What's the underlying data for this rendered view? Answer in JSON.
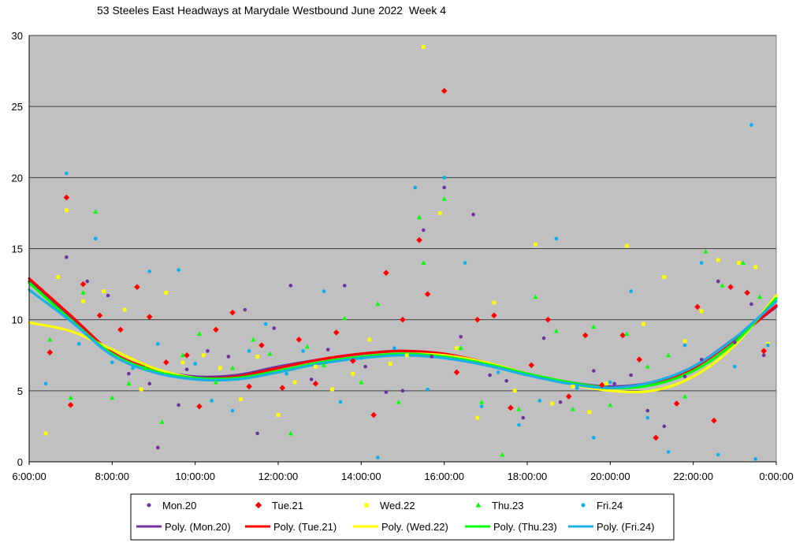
{
  "chart_data": {
    "type": "scatter",
    "title": "53 Steeles East Headways at Marydale Westbound June 2022  Week 4",
    "xlabel": "",
    "ylabel": "",
    "x_unit": "time of day (hours from 6:00:00)",
    "xlim": [
      6,
      24
    ],
    "ylim": [
      0,
      30
    ],
    "x_ticks": [
      "6:00:00",
      "8:00:00",
      "10:00:00",
      "12:00:00",
      "14:00:00",
      "16:00:00",
      "18:00:00",
      "20:00:00",
      "22:00:00",
      "0:00:00"
    ],
    "y_ticks": [
      "0",
      "5",
      "10",
      "15",
      "20",
      "25",
      "30"
    ],
    "grid": "horizontal",
    "plot_background": "#c0c0c0",
    "legend_position": "bottom",
    "series": [
      {
        "name": "Mon.20",
        "marker": "circle",
        "color": "#7030a0",
        "points": [
          [
            6.9,
            14.4
          ],
          [
            7.4,
            12.7
          ],
          [
            7.6,
            15.7
          ],
          [
            7.9,
            11.7
          ],
          [
            8.4,
            6.2
          ],
          [
            8.9,
            5.5
          ],
          [
            9.1,
            1.0
          ],
          [
            9.6,
            4.0
          ],
          [
            9.8,
            6.5
          ],
          [
            10.3,
            7.8
          ],
          [
            10.8,
            7.4
          ],
          [
            11.2,
            10.7
          ],
          [
            11.5,
            2.0
          ],
          [
            11.9,
            9.4
          ],
          [
            12.3,
            12.4
          ],
          [
            12.8,
            5.8
          ],
          [
            13.2,
            7.9
          ],
          [
            13.6,
            12.4
          ],
          [
            14.1,
            6.7
          ],
          [
            14.6,
            4.9
          ],
          [
            15.0,
            5.0
          ],
          [
            15.5,
            16.3
          ],
          [
            15.7,
            7.4
          ],
          [
            16.0,
            19.3
          ],
          [
            16.4,
            8.8
          ],
          [
            16.7,
            17.4
          ],
          [
            17.1,
            6.1
          ],
          [
            17.5,
            5.7
          ],
          [
            17.9,
            3.1
          ],
          [
            18.4,
            8.7
          ],
          [
            18.8,
            4.2
          ],
          [
            19.2,
            5.2
          ],
          [
            19.6,
            6.4
          ],
          [
            20.1,
            5.5
          ],
          [
            20.5,
            6.1
          ],
          [
            20.9,
            3.6
          ],
          [
            21.3,
            2.5
          ],
          [
            21.8,
            6.0
          ],
          [
            22.2,
            7.2
          ],
          [
            22.6,
            12.7
          ],
          [
            23.0,
            8.4
          ],
          [
            23.4,
            11.1
          ],
          [
            23.7,
            7.5
          ]
        ]
      },
      {
        "name": "Tue.21",
        "marker": "diamond",
        "color": "#ff0000",
        "points": [
          [
            6.5,
            7.7
          ],
          [
            6.9,
            18.6
          ],
          [
            7.0,
            4.0
          ],
          [
            7.3,
            12.5
          ],
          [
            7.7,
            10.3
          ],
          [
            8.2,
            9.3
          ],
          [
            8.6,
            12.3
          ],
          [
            8.9,
            10.2
          ],
          [
            9.3,
            7.0
          ],
          [
            9.8,
            7.5
          ],
          [
            10.1,
            3.9
          ],
          [
            10.5,
            9.3
          ],
          [
            10.9,
            10.5
          ],
          [
            11.3,
            5.3
          ],
          [
            11.6,
            8.2
          ],
          [
            12.1,
            5.2
          ],
          [
            12.5,
            8.6
          ],
          [
            12.9,
            5.5
          ],
          [
            13.4,
            9.1
          ],
          [
            13.8,
            7.1
          ],
          [
            14.3,
            3.3
          ],
          [
            14.6,
            13.3
          ],
          [
            15.0,
            10.0
          ],
          [
            15.4,
            15.6
          ],
          [
            15.6,
            11.8
          ],
          [
            16.0,
            26.1
          ],
          [
            16.3,
            6.3
          ],
          [
            16.8,
            10.0
          ],
          [
            17.2,
            10.3
          ],
          [
            17.6,
            3.8
          ],
          [
            18.1,
            6.8
          ],
          [
            18.5,
            10.0
          ],
          [
            19.0,
            4.6
          ],
          [
            19.4,
            8.9
          ],
          [
            19.8,
            5.4
          ],
          [
            20.3,
            8.9
          ],
          [
            20.7,
            7.2
          ],
          [
            21.1,
            1.7
          ],
          [
            21.6,
            4.1
          ],
          [
            22.1,
            10.9
          ],
          [
            22.5,
            2.9
          ],
          [
            22.9,
            12.3
          ],
          [
            23.3,
            11.9
          ],
          [
            23.7,
            7.8
          ]
        ]
      },
      {
        "name": "Wed.22",
        "marker": "square",
        "color": "#ffff00",
        "points": [
          [
            6.4,
            2.0
          ],
          [
            6.7,
            13.0
          ],
          [
            6.9,
            17.7
          ],
          [
            7.3,
            11.3
          ],
          [
            7.8,
            12.0
          ],
          [
            8.3,
            10.7
          ],
          [
            8.7,
            5.1
          ],
          [
            9.3,
            11.9
          ],
          [
            9.7,
            7.0
          ],
          [
            10.2,
            7.5
          ],
          [
            10.6,
            6.6
          ],
          [
            11.1,
            4.4
          ],
          [
            11.5,
            7.4
          ],
          [
            12.0,
            3.3
          ],
          [
            12.4,
            5.6
          ],
          [
            12.9,
            6.7
          ],
          [
            13.3,
            5.1
          ],
          [
            13.8,
            6.2
          ],
          [
            14.2,
            8.6
          ],
          [
            14.7,
            6.9
          ],
          [
            15.1,
            7.5
          ],
          [
            15.5,
            29.2
          ],
          [
            15.9,
            17.5
          ],
          [
            16.3,
            8.0
          ],
          [
            16.8,
            3.1
          ],
          [
            17.2,
            11.2
          ],
          [
            17.7,
            5.0
          ],
          [
            18.2,
            15.3
          ],
          [
            18.6,
            4.1
          ],
          [
            19.1,
            5.3
          ],
          [
            19.5,
            3.5
          ],
          [
            19.9,
            5.5
          ],
          [
            20.4,
            15.2
          ],
          [
            20.8,
            9.7
          ],
          [
            21.3,
            13.0
          ],
          [
            21.8,
            8.5
          ],
          [
            22.2,
            10.6
          ],
          [
            22.6,
            14.2
          ],
          [
            23.1,
            14.0
          ],
          [
            23.5,
            13.7
          ],
          [
            23.8,
            8.3
          ]
        ]
      },
      {
        "name": "Thu.23",
        "marker": "triangle",
        "color": "#00ff00",
        "points": [
          [
            6.5,
            8.6
          ],
          [
            7.0,
            4.5
          ],
          [
            7.3,
            11.9
          ],
          [
            7.6,
            17.6
          ],
          [
            8.0,
            4.5
          ],
          [
            8.4,
            5.5
          ],
          [
            8.8,
            6.6
          ],
          [
            9.2,
            2.8
          ],
          [
            9.7,
            7.5
          ],
          [
            10.1,
            9.0
          ],
          [
            10.5,
            5.6
          ],
          [
            10.9,
            6.6
          ],
          [
            11.4,
            8.6
          ],
          [
            11.8,
            7.6
          ],
          [
            12.3,
            2.0
          ],
          [
            12.7,
            8.1
          ],
          [
            13.1,
            6.8
          ],
          [
            13.6,
            10.1
          ],
          [
            14.0,
            5.6
          ],
          [
            14.4,
            11.1
          ],
          [
            14.9,
            4.2
          ],
          [
            15.4,
            17.2
          ],
          [
            15.5,
            14.0
          ],
          [
            16.0,
            18.5
          ],
          [
            16.4,
            8.0
          ],
          [
            16.9,
            4.2
          ],
          [
            17.4,
            0.5
          ],
          [
            17.8,
            3.7
          ],
          [
            18.2,
            11.6
          ],
          [
            18.7,
            9.2
          ],
          [
            19.1,
            3.7
          ],
          [
            19.6,
            9.5
          ],
          [
            20.0,
            4.0
          ],
          [
            20.4,
            9.0
          ],
          [
            20.9,
            6.7
          ],
          [
            21.4,
            7.5
          ],
          [
            21.8,
            4.6
          ],
          [
            22.3,
            14.8
          ],
          [
            22.7,
            12.4
          ],
          [
            23.2,
            14.0
          ],
          [
            23.6,
            11.6
          ]
        ]
      },
      {
        "name": "Fri.24",
        "marker": "circle",
        "color": "#00b0f0",
        "points": [
          [
            6.4,
            5.5
          ],
          [
            6.9,
            20.3
          ],
          [
            7.2,
            8.3
          ],
          [
            7.6,
            15.7
          ],
          [
            8.0,
            7.0
          ],
          [
            8.5,
            6.6
          ],
          [
            8.9,
            13.4
          ],
          [
            9.1,
            8.3
          ],
          [
            9.6,
            13.5
          ],
          [
            10.0,
            6.9
          ],
          [
            10.4,
            4.3
          ],
          [
            10.9,
            3.6
          ],
          [
            11.3,
            7.8
          ],
          [
            11.7,
            9.7
          ],
          [
            12.2,
            6.2
          ],
          [
            12.6,
            7.8
          ],
          [
            13.1,
            12.0
          ],
          [
            13.5,
            4.2
          ],
          [
            14.0,
            7.3
          ],
          [
            14.4,
            0.3
          ],
          [
            14.8,
            8.0
          ],
          [
            15.3,
            19.3
          ],
          [
            15.6,
            5.1
          ],
          [
            16.0,
            20.0
          ],
          [
            16.5,
            14.0
          ],
          [
            16.9,
            3.9
          ],
          [
            17.3,
            6.3
          ],
          [
            17.8,
            2.6
          ],
          [
            18.3,
            4.3
          ],
          [
            18.7,
            15.7
          ],
          [
            19.2,
            5.2
          ],
          [
            19.6,
            1.7
          ],
          [
            20.0,
            5.6
          ],
          [
            20.5,
            12.0
          ],
          [
            20.9,
            3.1
          ],
          [
            21.4,
            0.7
          ],
          [
            21.8,
            8.2
          ],
          [
            22.2,
            14.0
          ],
          [
            22.6,
            0.5
          ],
          [
            23.0,
            6.7
          ],
          [
            23.4,
            23.7
          ],
          [
            23.5,
            0.2
          ],
          [
            23.8,
            8.2
          ]
        ]
      }
    ],
    "trendlines": [
      {
        "name": "Poly. (Mon.20)",
        "color": "#7030a0",
        "x": [
          6,
          7,
          8,
          9,
          10,
          11,
          12,
          13,
          14,
          15,
          16,
          17,
          18,
          19,
          20,
          21,
          22,
          23,
          24
        ],
        "y": [
          12.7,
          10.2,
          7.6,
          6.5,
          6.0,
          6.1,
          6.7,
          7.2,
          7.6,
          7.8,
          7.5,
          6.9,
          6.2,
          5.6,
          5.3,
          5.6,
          6.7,
          8.7,
          10.9
        ]
      },
      {
        "name": "Poly. (Tue.21)",
        "color": "#ff0000",
        "x": [
          6,
          7,
          8,
          9,
          10,
          11,
          12,
          13,
          14,
          15,
          16,
          17,
          18,
          19,
          20,
          21,
          22,
          23,
          24
        ],
        "y": [
          12.9,
          10.3,
          7.7,
          6.5,
          5.9,
          6.0,
          6.6,
          7.2,
          7.6,
          7.8,
          7.6,
          7.0,
          6.2,
          5.6,
          5.2,
          5.5,
          6.6,
          8.6,
          11.0
        ]
      },
      {
        "name": "Poly. (Wed.22)",
        "color": "#ffff00",
        "x": [
          6,
          7,
          8,
          9,
          10,
          11,
          12,
          13,
          14,
          15,
          16,
          17,
          18,
          19,
          20,
          21,
          22,
          23,
          24
        ],
        "y": [
          9.8,
          9.2,
          7.9,
          6.6,
          5.9,
          5.8,
          6.3,
          6.9,
          7.4,
          7.6,
          7.5,
          7.0,
          6.2,
          5.5,
          5.0,
          5.0,
          6.0,
          8.2,
          11.7
        ]
      },
      {
        "name": "Poly. (Thu.23)",
        "color": "#00ff00",
        "x": [
          6,
          7,
          8,
          9,
          10,
          11,
          12,
          13,
          14,
          15,
          16,
          17,
          18,
          19,
          20,
          21,
          22,
          23,
          24
        ],
        "y": [
          12.6,
          10.0,
          7.6,
          6.4,
          5.9,
          5.9,
          6.4,
          7.0,
          7.4,
          7.6,
          7.4,
          6.9,
          6.2,
          5.6,
          5.2,
          5.4,
          6.4,
          8.4,
          11.5
        ]
      },
      {
        "name": "Poly. (Fri.24)",
        "color": "#1ab0e6",
        "x": [
          6,
          7,
          8,
          9,
          10,
          11,
          12,
          13,
          14,
          15,
          16,
          17,
          18,
          19,
          20,
          21,
          22,
          23,
          24
        ],
        "y": [
          12.1,
          9.9,
          7.5,
          6.3,
          5.8,
          5.8,
          6.3,
          6.9,
          7.3,
          7.5,
          7.3,
          6.8,
          6.1,
          5.5,
          5.2,
          5.6,
          6.7,
          8.7,
          11.3
        ]
      }
    ]
  },
  "legend": {
    "markers": [
      "Mon.20",
      "Tue.21",
      "Wed.22",
      "Thu.23",
      "Fri.24"
    ],
    "lines": [
      "Poly. (Mon.20)",
      "Poly. (Tue.21)",
      "Poly. (Wed.22)",
      "Poly. (Thu.23)",
      "Poly. (Fri.24)"
    ]
  }
}
